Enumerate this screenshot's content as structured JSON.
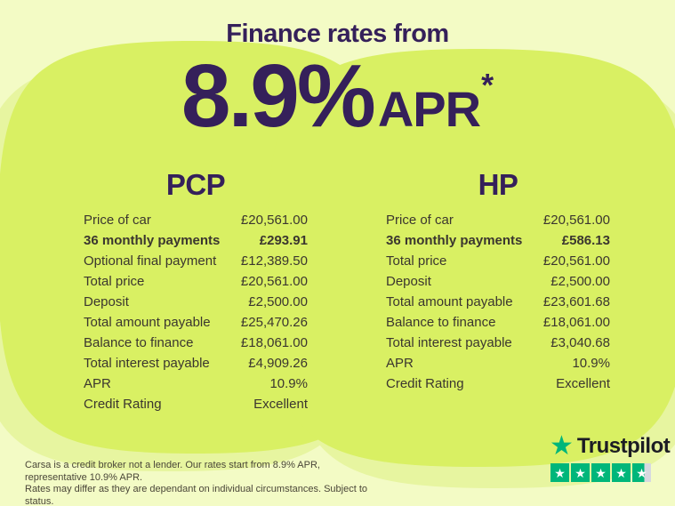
{
  "header": {
    "subtitle": "Finance rates from",
    "rate": "8.9%",
    "rate_suffix": "APR",
    "asterisk": "*"
  },
  "tables": [
    {
      "id": "pcp",
      "title": "PCP",
      "rows": [
        {
          "label": "Price of car",
          "value": "£20,561.00",
          "bold": false
        },
        {
          "label": "36 monthly payments",
          "value": "£293.91",
          "bold": true
        },
        {
          "label": "Optional final payment",
          "value": "£12,389.50",
          "bold": false
        },
        {
          "label": "Total price",
          "value": "£20,561.00",
          "bold": false
        },
        {
          "label": "Deposit",
          "value": "£2,500.00",
          "bold": false
        },
        {
          "label": "Total amount payable",
          "value": "£25,470.26",
          "bold": false
        },
        {
          "label": "Balance to finance",
          "value": "£18,061.00",
          "bold": false
        },
        {
          "label": "Total interest payable",
          "value": "£4,909.26",
          "bold": false
        },
        {
          "label": "APR",
          "value": "10.9%",
          "bold": false
        },
        {
          "label": "Credit Rating",
          "value": "Excellent",
          "bold": false
        }
      ]
    },
    {
      "id": "hp",
      "title": "HP",
      "rows": [
        {
          "label": "Price of car",
          "value": "£20,561.00",
          "bold": false
        },
        {
          "label": "36 monthly payments",
          "value": "£586.13",
          "bold": true
        },
        {
          "label": "Total price",
          "value": "£20,561.00",
          "bold": false
        },
        {
          "label": "Deposit",
          "value": "£2,500.00",
          "bold": false
        },
        {
          "label": "Total amount payable",
          "value": "£23,601.68",
          "bold": false
        },
        {
          "label": "Balance to finance",
          "value": "£18,061.00",
          "bold": false
        },
        {
          "label": "Total interest payable",
          "value": "£3,040.68",
          "bold": false
        },
        {
          "label": "APR",
          "value": "10.9%",
          "bold": false
        },
        {
          "label": "Credit Rating",
          "value": "Excellent",
          "bold": false
        }
      ]
    }
  ],
  "footer": {
    "disclaimer_line1": "Carsa is a credit broker not a lender. Our rates start from 8.9% APR, representative 10.9% APR.",
    "disclaimer_line2": "Rates may differ as they are dependant on individual circumstances. Subject to status.",
    "trustpilot": {
      "brand": "Trustpilot",
      "star_glyph": "★",
      "stars_total": 5,
      "stars_value": 4.65
    }
  },
  "colors": {
    "background": "#f3fbc5",
    "blob": "#d9f063",
    "blob_soft": "#e7f5a0",
    "heading_purple": "#35205a",
    "text_dark": "#3b362f",
    "disclaimer_text": "#4a4638",
    "trustpilot_green": "#00b67a",
    "star_empty": "#d6d9e0",
    "brand_dark": "#1c1c24"
  }
}
